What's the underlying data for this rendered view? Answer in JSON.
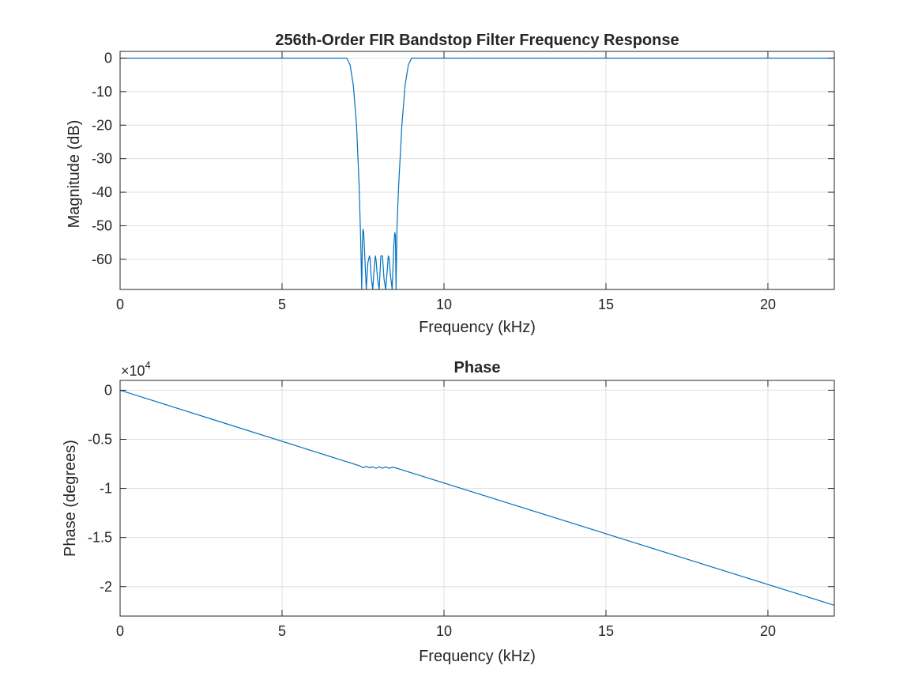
{
  "colors": {
    "line": "#0072BD",
    "axis": "#262626",
    "grid": "#dfdfdf"
  },
  "chart_data": [
    {
      "type": "line",
      "title": "256th-Order FIR Bandstop Filter Frequency Response",
      "xlabel": "Frequency (kHz)",
      "ylabel": "Magnitude (dB)",
      "xlim": [
        0,
        22.05
      ],
      "ylim": [
        -69,
        2
      ],
      "grid": true,
      "x_ticks": [
        0,
        5,
        10,
        15,
        20
      ],
      "x_tick_labels": [
        "0",
        "5",
        "10",
        "15",
        "20"
      ],
      "y_ticks": [
        0,
        -10,
        -20,
        -30,
        -40,
        -50,
        -60
      ],
      "y_tick_labels": [
        "0",
        "-10",
        "-20",
        "-30",
        "-40",
        "-50",
        "-60"
      ],
      "series": [
        {
          "x": [
            0,
            6.5,
            6.8,
            7.0,
            7.1,
            7.2,
            7.3,
            7.38,
            7.43,
            7.46,
            7.48,
            7.5,
            7.52,
            7.55,
            7.6,
            7.65,
            7.7,
            7.72,
            7.75,
            7.8,
            7.85,
            7.88,
            7.9,
            7.95,
            8.0,
            8.03,
            8.05,
            8.1,
            8.15,
            8.2,
            8.25,
            8.28,
            8.3,
            8.35,
            8.4,
            8.45,
            8.48,
            8.5,
            8.52,
            8.55,
            8.6,
            8.7,
            8.8,
            8.9,
            9.0,
            9.1,
            9.3,
            22.05
          ],
          "y": [
            0,
            0,
            0,
            0,
            -2,
            -8,
            -20,
            -38,
            -55,
            -69,
            -55,
            -51,
            -52,
            -58,
            -69,
            -61,
            -59,
            -60,
            -65,
            -69,
            -62,
            -59,
            -60,
            -66,
            -69,
            -63,
            -59,
            -59,
            -66,
            -69,
            -63,
            -59,
            -59.5,
            -65,
            -69,
            -56,
            -52,
            -53,
            -69,
            -50,
            -38,
            -20,
            -8,
            -2,
            0,
            0,
            0,
            0
          ]
        }
      ]
    },
    {
      "type": "line",
      "title": "Phase",
      "xlabel": "Frequency (kHz)",
      "ylabel": "Phase (degrees)",
      "y_scale_factor": "×10",
      "y_scale_exponent": "4",
      "xlim": [
        0,
        22.05
      ],
      "ylim": [
        -2.3,
        0.1
      ],
      "grid": true,
      "x_ticks": [
        0,
        5,
        10,
        15,
        20
      ],
      "x_tick_labels": [
        "0",
        "5",
        "10",
        "15",
        "20"
      ],
      "y_ticks": [
        0,
        -0.5,
        -1,
        -1.5,
        -2
      ],
      "y_tick_labels": [
        "0",
        "-0.5",
        "-1",
        "-1.5",
        "-2"
      ],
      "series": [
        {
          "x": [
            0,
            7.4,
            7.5,
            7.6,
            7.7,
            7.8,
            7.9,
            8.0,
            8.1,
            8.2,
            8.3,
            8.4,
            8.5,
            22.05
          ],
          "y": [
            0,
            -0.77,
            -0.79,
            -0.775,
            -0.79,
            -0.78,
            -0.795,
            -0.78,
            -0.795,
            -0.78,
            -0.795,
            -0.785,
            -0.79,
            -2.19
          ]
        }
      ]
    }
  ]
}
